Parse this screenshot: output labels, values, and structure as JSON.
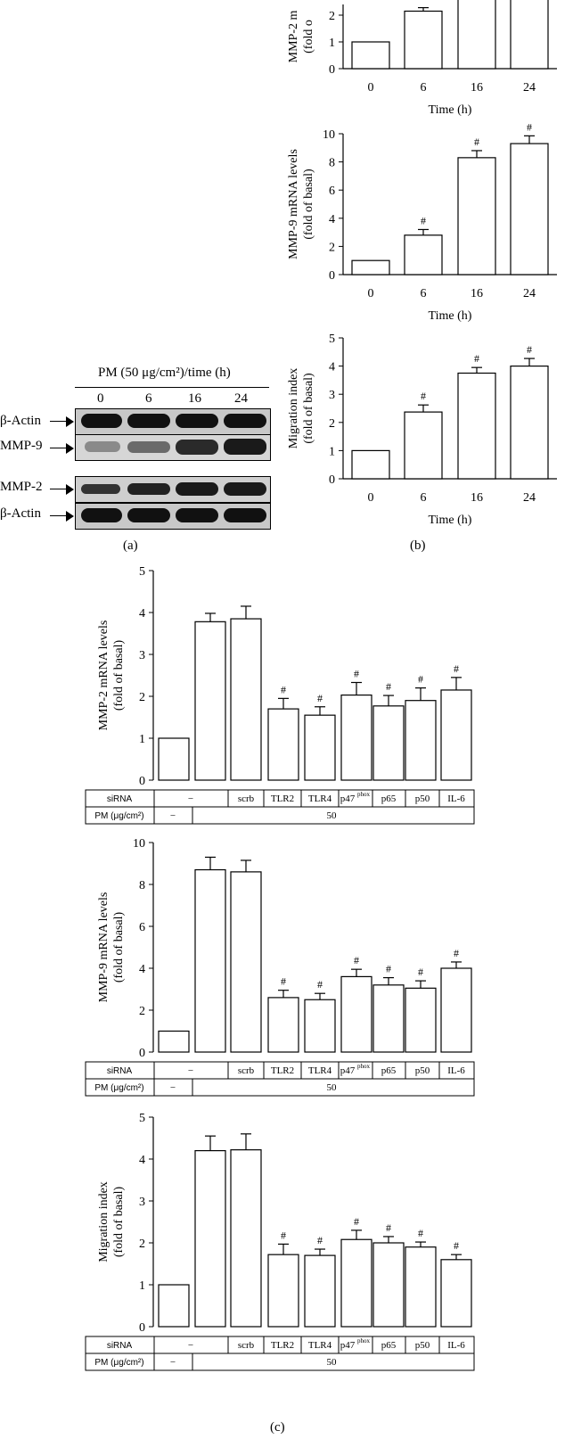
{
  "panels": {
    "a": "(a)",
    "b": "(b)",
    "c": "(c)"
  },
  "blot": {
    "header": "PM (50 μg/cm²)/time (h)",
    "lanes": [
      "0",
      "6",
      "16",
      "24"
    ],
    "rows": [
      "β-Actin",
      "MMP-9",
      "MMP-2",
      "β-Actin"
    ]
  },
  "chart_data": [
    {
      "id": "b1",
      "type": "bar",
      "categories": [
        "0",
        "6",
        "16",
        "24"
      ],
      "values": [
        1.0,
        2.15,
        null,
        null
      ],
      "errors": [
        0,
        0.13,
        null,
        null
      ],
      "significance": [
        "",
        "",
        "",
        ""
      ],
      "xlabel": "Time (h)",
      "ylabel": "MMP-2 m",
      "ylabel2": "(fold o",
      "yticks": [
        "0",
        "1",
        "2"
      ],
      "ylim": [
        0,
        2.4
      ]
    },
    {
      "id": "b2",
      "type": "bar",
      "categories": [
        "0",
        "6",
        "16",
        "24"
      ],
      "values": [
        1.0,
        2.8,
        8.3,
        9.3
      ],
      "errors": [
        0,
        0.4,
        0.5,
        0.55
      ],
      "significance": [
        "",
        "#",
        "#",
        "#"
      ],
      "xlabel": "Time (h)",
      "ylabel": "MMP-9 mRNA levels",
      "ylabel2": "(fold of basal)",
      "yticks": [
        "0",
        "2",
        "4",
        "6",
        "8",
        "10"
      ],
      "ylim": [
        0,
        10
      ]
    },
    {
      "id": "b3",
      "type": "bar",
      "categories": [
        "0",
        "6",
        "16",
        "24"
      ],
      "values": [
        1.0,
        2.37,
        3.75,
        4.0
      ],
      "errors": [
        0,
        0.25,
        0.2,
        0.27
      ],
      "significance": [
        "",
        "#",
        "#",
        "#"
      ],
      "xlabel": "Time (h)",
      "ylabel": "Migration index",
      "ylabel2": "(fold of basal)",
      "yticks": [
        "0",
        "1",
        "2",
        "3",
        "4",
        "5"
      ],
      "ylim": [
        0,
        5
      ]
    },
    {
      "id": "c1",
      "type": "bar",
      "categories": [
        "",
        "−",
        "scrb",
        "TLR2",
        "TLR4",
        "p47phox",
        "p65",
        "p50",
        "IL-6"
      ],
      "values": [
        1.0,
        3.78,
        3.85,
        1.7,
        1.55,
        2.03,
        1.77,
        1.9,
        2.15
      ],
      "errors": [
        0,
        0.2,
        0.3,
        0.25,
        0.2,
        0.3,
        0.25,
        0.3,
        0.3
      ],
      "significance": [
        "",
        "",
        "",
        "#",
        "#",
        "#",
        "#",
        "#",
        "#"
      ],
      "ylabel": "MMP-2 mRNA levels",
      "ylabel2": "(fold of basal)",
      "yticks": [
        "0",
        "1",
        "2",
        "3",
        "4",
        "5"
      ],
      "ylim": [
        0,
        5
      ]
    },
    {
      "id": "c2",
      "type": "bar",
      "categories": [
        "",
        "−",
        "scrb",
        "TLR2",
        "TLR4",
        "p47phox",
        "p65",
        "p50",
        "IL-6"
      ],
      "values": [
        1.0,
        8.7,
        8.6,
        2.6,
        2.5,
        3.6,
        3.2,
        3.05,
        4.0
      ],
      "errors": [
        0,
        0.6,
        0.55,
        0.35,
        0.3,
        0.35,
        0.35,
        0.35,
        0.3
      ],
      "significance": [
        "",
        "",
        "",
        "#",
        "#",
        "#",
        "#",
        "#",
        "#"
      ],
      "ylabel": "MMP-9 mRNA levels",
      "ylabel2": "(fold of basal)",
      "yticks": [
        "0",
        "2",
        "4",
        "6",
        "8",
        "10"
      ],
      "ylim": [
        0,
        10
      ]
    },
    {
      "id": "c3",
      "type": "bar",
      "categories": [
        "",
        "−",
        "scrb",
        "TLR2",
        "TLR4",
        "p47phox",
        "p65",
        "p50",
        "IL-6"
      ],
      "values": [
        1.0,
        4.2,
        4.22,
        1.72,
        1.7,
        2.08,
        2.0,
        1.9,
        1.6
      ],
      "errors": [
        0,
        0.35,
        0.38,
        0.25,
        0.15,
        0.22,
        0.15,
        0.12,
        0.12
      ],
      "significance": [
        "",
        "",
        "",
        "#",
        "#",
        "#",
        "#",
        "#",
        "#"
      ],
      "ylabel": "Migration index",
      "ylabel2": "(fold of basal)",
      "yticks": [
        "0",
        "1",
        "2",
        "3",
        "4",
        "5"
      ],
      "ylim": [
        0,
        5
      ]
    }
  ],
  "table": {
    "sirna_label": "siRNA",
    "pm_label": "PM (μg/cm²)",
    "pm_minus": "−",
    "pm_value": "50",
    "sirna_cells": [
      "−",
      "scrb",
      "TLR2",
      "TLR4",
      "p47",
      "p65",
      "p50",
      "IL-6"
    ],
    "sup": "phox"
  }
}
